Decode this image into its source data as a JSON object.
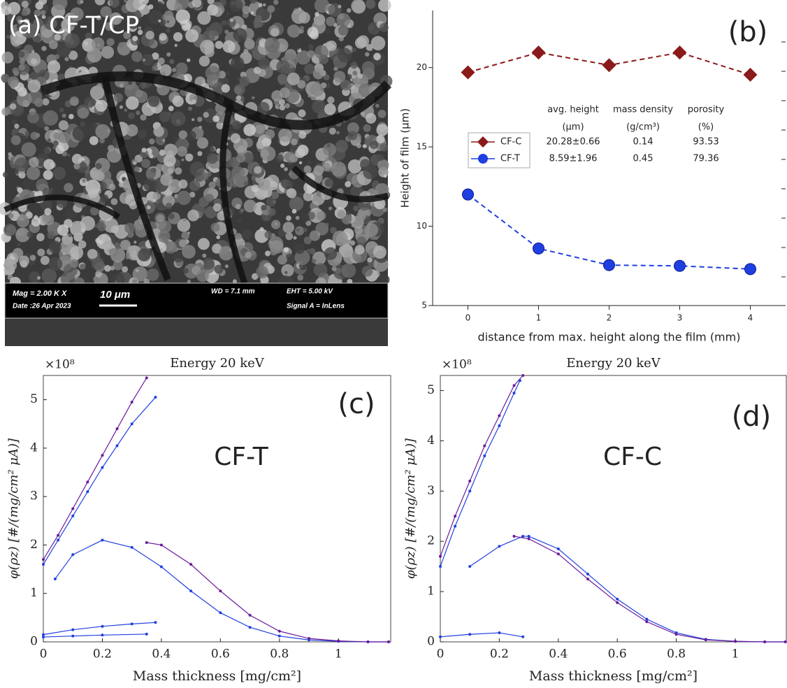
{
  "image_panel": {
    "label": "(a) CF-T/CP",
    "mag": "Mag =  2.00 K X",
    "date": "Date :26 Apr 2023",
    "scale": "10 μm",
    "wd": "WD =  7.1 mm",
    "eht": "EHT =  5.00 kV",
    "signal": "Signal A = InLens"
  },
  "chart_data": [
    {
      "type": "line",
      "panel_label": "(b)",
      "x_label": "distance from max. height along the film (mm)",
      "y_label": "Height of film (μm)",
      "x": [
        0,
        1,
        2,
        3,
        4
      ],
      "xlim": [
        -0.5,
        4.5
      ],
      "xticks": [
        0,
        1,
        2,
        3,
        4
      ],
      "ylim": [
        5,
        23.6
      ],
      "yticks": [
        5,
        10,
        15,
        20
      ],
      "series": [
        {
          "name": "CF-C",
          "color": "#8b1a1a",
          "marker": "diamond",
          "dashed": true,
          "values": [
            19.7,
            20.95,
            20.15,
            20.95,
            19.55
          ]
        },
        {
          "name": "CF-T",
          "color": "#1f3fe0",
          "marker": "circle",
          "dashed": true,
          "values": [
            12.0,
            8.6,
            7.55,
            7.5,
            7.3
          ]
        }
      ],
      "table": {
        "header": [
          "avg. height",
          "mass density",
          "porosity"
        ],
        "units": [
          "(μm)",
          "(g/cm³)",
          "(%)"
        ],
        "rows": [
          [
            "20.28±0.66",
            "0.14",
            "93.53"
          ],
          [
            "8.59±1.96",
            "0.45",
            "79.36"
          ]
        ]
      }
    },
    {
      "type": "line",
      "panel_label": "(c)",
      "title": "Energy 20 keV",
      "annotation": "CF-T",
      "multiplier": "×10⁸",
      "x_label": "Mass thickness [mg/cm²]",
      "y_label": "φ(ρz) [#/(mg/cm² μA)]",
      "xlim": [
        0,
        1.177
      ],
      "xticks": [
        0,
        0.2,
        0.4,
        0.6,
        0.8,
        1
      ],
      "ylim": [
        0,
        5.5
      ],
      "yticks": [
        0,
        1,
        2,
        3,
        4,
        5
      ],
      "series": [
        {
          "color": "#6a1b9a",
          "marker": "dot",
          "x": [
            0,
            0.05,
            0.1,
            0.15,
            0.2,
            0.25,
            0.3,
            0.35
          ],
          "values": [
            1.7,
            2.2,
            2.75,
            3.3,
            3.85,
            4.4,
            4.95,
            5.45
          ]
        },
        {
          "color": "#2040e0",
          "marker": "dot",
          "x": [
            0,
            0.05,
            0.1,
            0.15,
            0.2,
            0.25,
            0.3,
            0.38
          ],
          "values": [
            1.6,
            2.1,
            2.6,
            3.1,
            3.6,
            4.05,
            4.5,
            5.05
          ]
        },
        {
          "color": "#2040e0",
          "marker": "dot",
          "x": [
            0.04,
            0.1,
            0.2,
            0.3,
            0.4,
            0.5,
            0.6,
            0.7,
            0.8,
            0.9,
            1.0,
            1.1,
            1.17
          ],
          "values": [
            1.3,
            1.8,
            2.1,
            1.95,
            1.55,
            1.05,
            0.6,
            0.3,
            0.12,
            0.04,
            0.01,
            0,
            0
          ]
        },
        {
          "color": "#6a1b9a",
          "marker": "dot",
          "x": [
            0.35,
            0.4,
            0.5,
            0.6,
            0.7,
            0.8,
            0.9,
            1.0,
            1.1,
            1.17
          ],
          "values": [
            2.05,
            2.0,
            1.6,
            1.05,
            0.55,
            0.22,
            0.07,
            0.02,
            0,
            0
          ]
        },
        {
          "color": "#2040e0",
          "marker": "dot",
          "x": [
            0,
            0.1,
            0.2,
            0.3,
            0.38
          ],
          "values": [
            0.15,
            0.25,
            0.32,
            0.37,
            0.4
          ]
        },
        {
          "color": "#2040e0",
          "marker": "dot",
          "x": [
            0,
            0.1,
            0.2,
            0.35
          ],
          "values": [
            0.1,
            0.12,
            0.14,
            0.16
          ]
        }
      ]
    },
    {
      "type": "line",
      "panel_label": "(d)",
      "title": "Energy 20 keV",
      "annotation": "CF-C",
      "multiplier": "×10⁸",
      "x_label": "Mass thickness [mg/cm²]",
      "y_label": "φ(ρz) [#/(mg/cm² μA)]",
      "xlim": [
        0,
        1.173
      ],
      "xticks": [
        0,
        0.2,
        0.4,
        0.6,
        0.8,
        1
      ],
      "ylim": [
        0,
        5.3
      ],
      "yticks": [
        0,
        1,
        2,
        3,
        4,
        5
      ],
      "series": [
        {
          "color": "#6a1b9a",
          "marker": "dot",
          "x": [
            0,
            0.05,
            0.1,
            0.15,
            0.2,
            0.25,
            0.28
          ],
          "values": [
            1.7,
            2.5,
            3.2,
            3.9,
            4.5,
            5.1,
            5.3
          ]
        },
        {
          "color": "#2040e0",
          "marker": "dot",
          "x": [
            0,
            0.05,
            0.1,
            0.15,
            0.2,
            0.25,
            0.27
          ],
          "values": [
            1.5,
            2.3,
            3.0,
            3.7,
            4.3,
            4.95,
            5.2
          ]
        },
        {
          "color": "#2040e0",
          "marker": "dot",
          "x": [
            0.1,
            0.2,
            0.28,
            0.3,
            0.4,
            0.5,
            0.6,
            0.7,
            0.8,
            0.9,
            1.0,
            1.1,
            1.17
          ],
          "values": [
            1.5,
            1.9,
            2.1,
            2.1,
            1.85,
            1.35,
            0.85,
            0.45,
            0.18,
            0.05,
            0.01,
            0,
            0
          ]
        },
        {
          "color": "#6a1b9a",
          "marker": "dot",
          "x": [
            0.25,
            0.3,
            0.4,
            0.5,
            0.6,
            0.7,
            0.8,
            0.9,
            1.0,
            1.1,
            1.17
          ],
          "values": [
            2.1,
            2.05,
            1.75,
            1.25,
            0.78,
            0.4,
            0.15,
            0.04,
            0.01,
            0,
            0
          ]
        },
        {
          "color": "#2040e0",
          "marker": "dot",
          "x": [
            0,
            0.1,
            0.2,
            0.28
          ],
          "values": [
            0.1,
            0.15,
            0.18,
            0.1
          ]
        }
      ]
    }
  ]
}
